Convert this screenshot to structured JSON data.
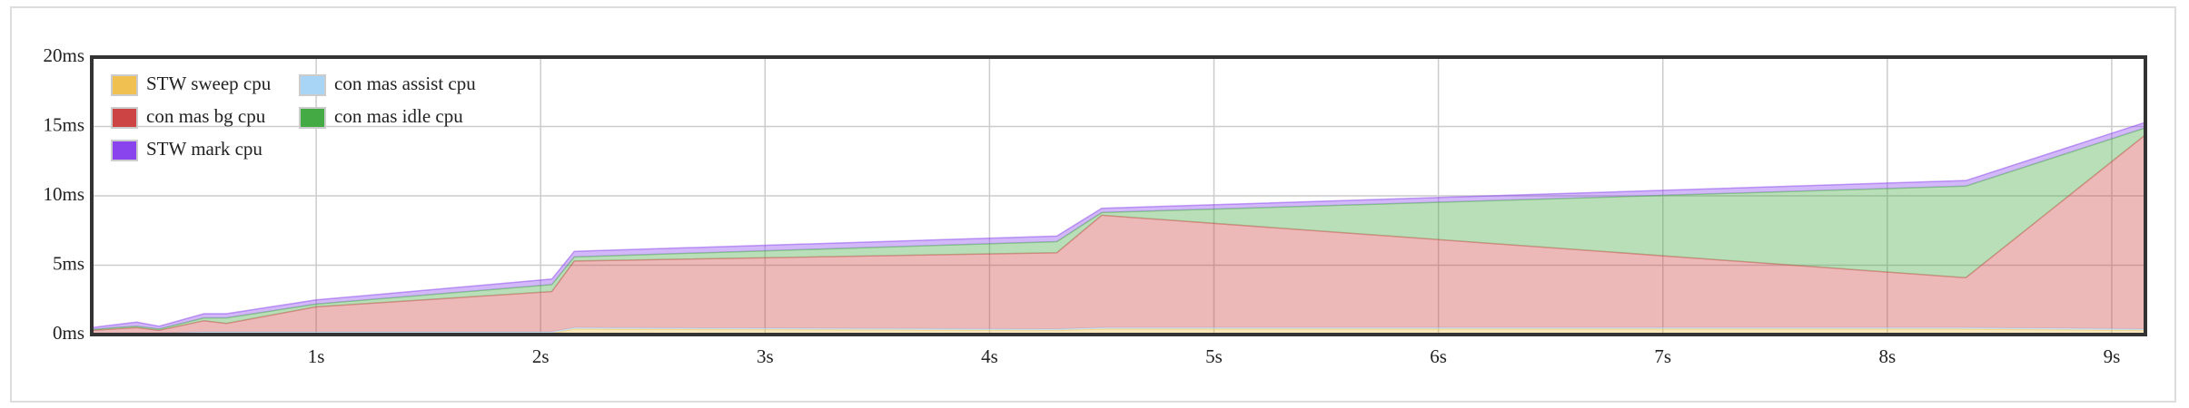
{
  "chart_data": {
    "type": "stacked_area",
    "x": [
      0,
      0.1,
      0.2,
      0.3,
      0.5,
      0.6,
      1.0,
      2.05,
      2.15,
      4.3,
      4.5,
      8.35,
      9.15
    ],
    "series": [
      {
        "name": "STW sweep cpu",
        "color": "#f0c050",
        "values": [
          0.05,
          0.05,
          0.05,
          0.05,
          0.1,
          0.1,
          0.1,
          0.1,
          0.4,
          0.3,
          0.4,
          0.4,
          0.3
        ]
      },
      {
        "name": "con mas assist cpu",
        "color": "#a8d4f5",
        "values": [
          0.05,
          0.05,
          0.05,
          0.05,
          0.1,
          0.1,
          0.1,
          0.1,
          0.1,
          0.1,
          0.1,
          0.1,
          0.1
        ]
      },
      {
        "name": "con mas bg cpu",
        "color": "#cc4444",
        "values": [
          0.2,
          0.3,
          0.4,
          0.2,
          0.8,
          0.6,
          1.8,
          2.9,
          4.8,
          5.5,
          8.1,
          3.6,
          14.0
        ]
      },
      {
        "name": "con mas idle cpu",
        "color": "#44aa44",
        "values": [
          0.05,
          0.1,
          0.1,
          0.1,
          0.2,
          0.4,
          0.2,
          0.5,
          0.3,
          0.8,
          0.2,
          6.6,
          0.5
        ]
      },
      {
        "name": "STW mark cpu",
        "color": "#8a44ee",
        "values": [
          0.15,
          0.2,
          0.3,
          0.2,
          0.3,
          0.3,
          0.3,
          0.4,
          0.4,
          0.4,
          0.3,
          0.4,
          0.4
        ]
      }
    ],
    "xlim": [
      0,
      9.15
    ],
    "xticks": [
      {
        "value": 1,
        "label": "1s"
      },
      {
        "value": 2,
        "label": "2s"
      },
      {
        "value": 3,
        "label": "3s"
      },
      {
        "value": 4,
        "label": "4s"
      },
      {
        "value": 5,
        "label": "5s"
      },
      {
        "value": 6,
        "label": "6s"
      },
      {
        "value": 7,
        "label": "7s"
      },
      {
        "value": 8,
        "label": "8s"
      },
      {
        "value": 9,
        "label": "9s"
      }
    ],
    "ylim": [
      0,
      20
    ],
    "yticks": [
      {
        "value": 0,
        "label": "0ms"
      },
      {
        "value": 5,
        "label": "5ms"
      },
      {
        "value": 10,
        "label": "10ms"
      },
      {
        "value": 15,
        "label": "15ms"
      },
      {
        "value": 20,
        "label": "20ms"
      }
    ],
    "grid": true
  }
}
